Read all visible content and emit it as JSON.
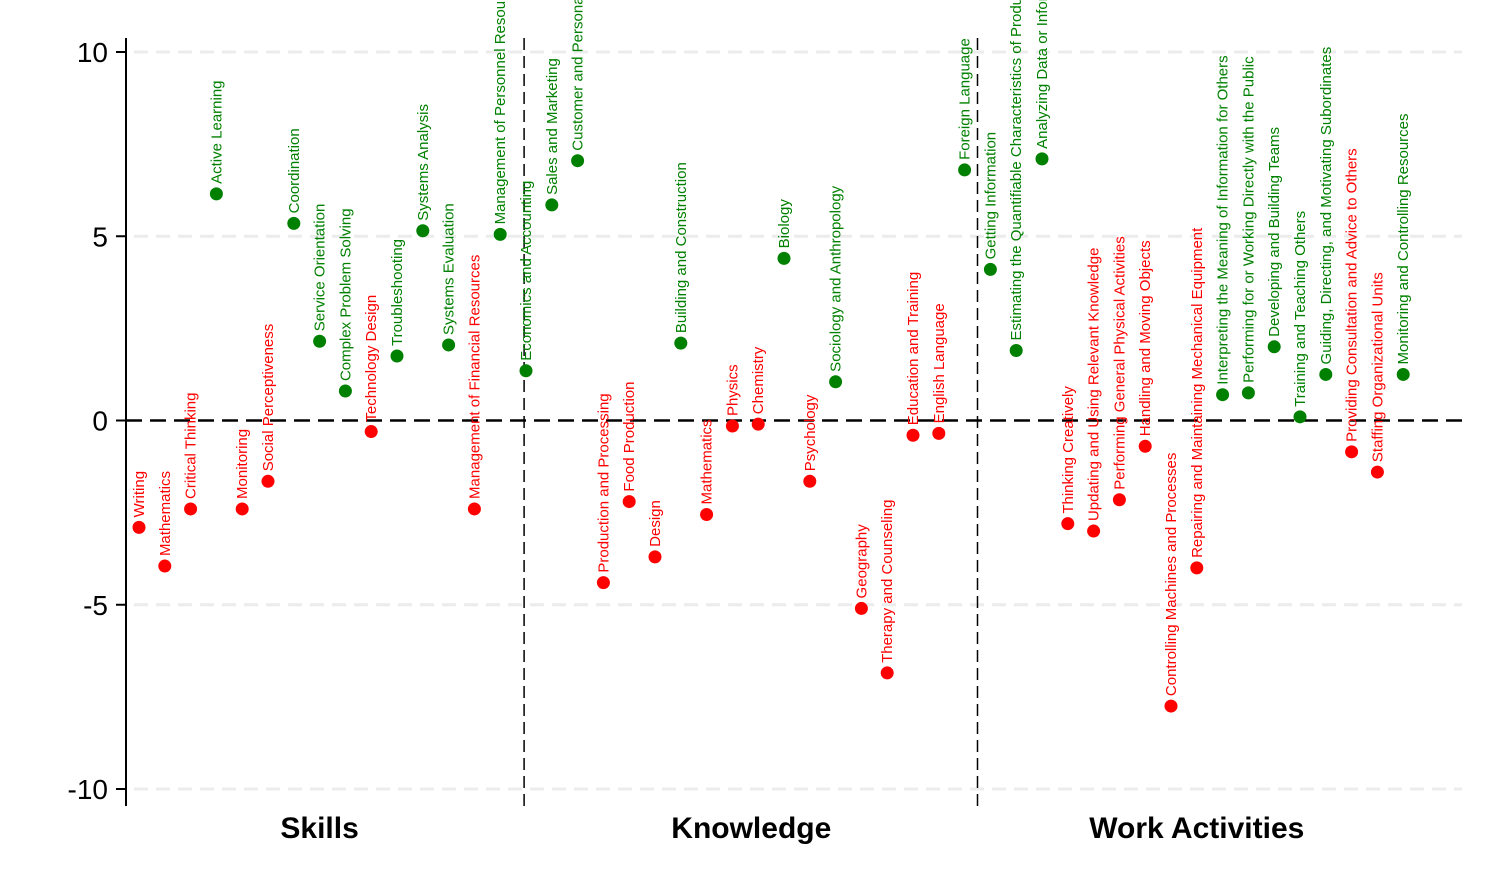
{
  "chart_data": {
    "type": "scatter",
    "ylim": [
      -10.5,
      10.5
    ],
    "yticks": [
      -10,
      -5,
      0,
      5,
      10
    ],
    "grid": true,
    "colors": {
      "positive": "#008000",
      "negative": "#ff0000"
    },
    "groups": [
      {
        "name": "Skills",
        "points": [
          {
            "label": "Writing",
            "y": -2.9
          },
          {
            "label": "Mathematics",
            "y": -3.95
          },
          {
            "label": "Critical Thinking",
            "y": -2.4
          },
          {
            "label": "Active Learning",
            "y": 6.15
          },
          {
            "label": "Monitoring",
            "y": -2.4
          },
          {
            "label": "Social Perceptiveness",
            "y": -1.65
          },
          {
            "label": "Coordination",
            "y": 5.35
          },
          {
            "label": "Service Orientation",
            "y": 2.15
          },
          {
            "label": "Complex Problem Solving",
            "y": 0.8
          },
          {
            "label": "Technology Design",
            "y": -0.3
          },
          {
            "label": "Troubleshooting",
            "y": 1.75
          },
          {
            "label": "Systems Analysis",
            "y": 5.15
          },
          {
            "label": "Systems Evaluation",
            "y": 2.05
          },
          {
            "label": "Management of Financial Resources",
            "y": -2.4
          },
          {
            "label": "Management of Personnel Resources",
            "y": 5.05
          }
        ]
      },
      {
        "name": "Knowledge",
        "points": [
          {
            "label": "Economics and Accounting",
            "y": 1.35
          },
          {
            "label": "Sales and Marketing",
            "y": 5.85
          },
          {
            "label": "Customer and Personal Service",
            "y": 7.05
          },
          {
            "label": "Production and Processing",
            "y": -4.4
          },
          {
            "label": "Food Production",
            "y": -2.2
          },
          {
            "label": "Design",
            "y": -3.7
          },
          {
            "label": "Building and Construction",
            "y": 2.1
          },
          {
            "label": "Mathematics",
            "y": -2.55
          },
          {
            "label": "Physics",
            "y": -0.15
          },
          {
            "label": "Chemistry",
            "y": -0.1
          },
          {
            "label": "Biology",
            "y": 4.4
          },
          {
            "label": "Psychology",
            "y": -1.65
          },
          {
            "label": "Sociology and Anthropology",
            "y": 1.05
          },
          {
            "label": "Geography",
            "y": -5.1
          },
          {
            "label": "Therapy and Counseling",
            "y": -6.85
          },
          {
            "label": "Education and Training",
            "y": -0.4
          },
          {
            "label": "English Language",
            "y": -0.35
          },
          {
            "label": "Foreign Language",
            "y": 6.8
          }
        ]
      },
      {
        "name": "Work Activities",
        "points": [
          {
            "label": "Getting Information",
            "y": 4.1
          },
          {
            "label": "Estimating the Quantifiable Characteristics of Products, Events, or Information",
            "y": 1.9
          },
          {
            "label": "Analyzing Data or Information",
            "y": 7.1
          },
          {
            "label": "Thinking Creatively",
            "y": -2.8
          },
          {
            "label": "Updating and Using Relevant Knowledge",
            "y": -3.0
          },
          {
            "label": "Performing General Physical Activities",
            "y": -2.15
          },
          {
            "label": "Handling and Moving Objects",
            "y": -0.7
          },
          {
            "label": "Controlling Machines and Processes",
            "y": -7.75
          },
          {
            "label": "Repairing and Maintaining Mechanical Equipment",
            "y": -4.0
          },
          {
            "label": "Interpreting the Meaning of Information for Others",
            "y": 0.7
          },
          {
            "label": "Performing for or Working Directly with the Public",
            "y": 0.75
          },
          {
            "label": "Developing and Building Teams",
            "y": 2.0
          },
          {
            "label": "Training and Teaching Others",
            "y": 0.1
          },
          {
            "label": "Guiding, Directing, and Motivating Subordinates",
            "y": 1.25
          },
          {
            "label": "Providing Consultation and Advice to Others",
            "y": -0.85
          },
          {
            "label": "Staffing Organizational Units",
            "y": -1.4
          },
          {
            "label": "Monitoring and Controlling Resources",
            "y": 1.25
          }
        ]
      }
    ]
  }
}
